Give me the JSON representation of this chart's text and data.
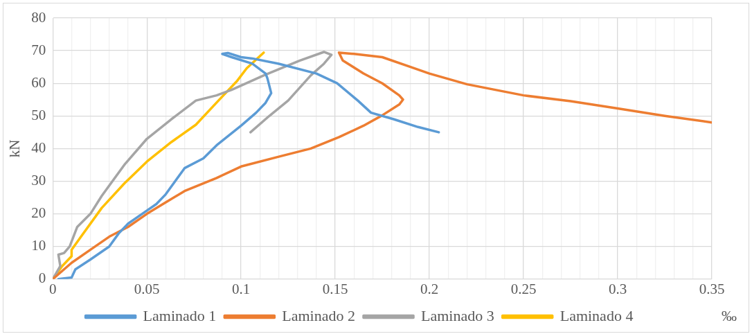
{
  "chart_data": {
    "type": "line",
    "xlabel": "‰",
    "ylabel": "kN",
    "xlim": [
      0,
      0.35
    ],
    "xticks": [
      0,
      {
        "value": 0.01,
        "label": null
      },
      {
        "value": 0.02,
        "label": null
      },
      {
        "value": 0.03,
        "label": null
      },
      {
        "value": 0.04,
        "label": null
      },
      0.05,
      {
        "value": 0.06,
        "label": null
      },
      {
        "value": 0.07,
        "label": null
      },
      {
        "value": 0.08,
        "label": null
      },
      {
        "value": 0.09,
        "label": null
      },
      0.1,
      {
        "value": 0.11,
        "label": null
      },
      {
        "value": 0.12,
        "label": null
      },
      {
        "value": 0.13,
        "label": null
      },
      {
        "value": 0.14,
        "label": null
      },
      0.15,
      {
        "value": 0.16,
        "label": null
      },
      {
        "value": 0.17,
        "label": null
      },
      {
        "value": 0.18,
        "label": null
      },
      {
        "value": 0.19,
        "label": null
      },
      0.2,
      {
        "value": 0.21,
        "label": null
      },
      {
        "value": 0.22,
        "label": null
      },
      {
        "value": 0.23,
        "label": null
      },
      {
        "value": 0.24,
        "label": null
      },
      0.25,
      {
        "value": 0.26,
        "label": null
      },
      {
        "value": 0.27,
        "label": null
      },
      {
        "value": 0.28,
        "label": null
      },
      {
        "value": 0.29,
        "label": null
      },
      0.3,
      {
        "value": 0.31,
        "label": null
      },
      {
        "value": 0.32,
        "label": null
      },
      {
        "value": 0.33,
        "label": null
      },
      {
        "value": 0.34,
        "label": null
      },
      0.35
    ],
    "ylim": [
      0,
      80
    ],
    "yticks": [
      0,
      10,
      20,
      30,
      40,
      50,
      60,
      70,
      80
    ],
    "grid": true,
    "legend": "bottom",
    "marker": "none",
    "line_style": "solid",
    "series": [
      {
        "name": "Laminado 1",
        "color": "#5b9bd5",
        "x": [
          0.003,
          0.01,
          0.012,
          0.02,
          0.03,
          0.035,
          0.04,
          0.05,
          0.055,
          0.06,
          0.065,
          0.07,
          0.08,
          0.087,
          0.1,
          0.108,
          0.113,
          0.116,
          0.114,
          0.113,
          0.106,
          0.095,
          0.09,
          0.093,
          0.1,
          0.106,
          0.12,
          0.14,
          0.151,
          0.162,
          0.169,
          0.181,
          0.194,
          0.205
        ],
        "values": [
          0,
          0.5,
          3,
          6,
          10,
          14,
          17,
          21,
          23,
          26,
          30,
          34,
          37,
          41,
          47,
          51,
          54,
          57,
          61.5,
          63,
          66,
          68,
          69,
          69.3,
          68,
          67.6,
          66,
          63,
          60,
          54.7,
          51,
          49,
          46.6,
          45
        ]
      },
      {
        "name": "Laminado 2",
        "color": "#ed7d31",
        "x": [
          0,
          0.01,
          0.02,
          0.03,
          0.04,
          0.05,
          0.06,
          0.07,
          0.087,
          0.1,
          0.12,
          0.137,
          0.152,
          0.165,
          0.175,
          0.184,
          0.186,
          0.184,
          0.175,
          0.165,
          0.154,
          0.152,
          0.16,
          0.175,
          0.19,
          0.2,
          0.22,
          0.25,
          0.275,
          0.3,
          0.325,
          0.35
        ],
        "values": [
          0,
          5,
          9,
          13,
          16,
          20,
          23.5,
          27,
          31,
          34.5,
          37.5,
          40,
          43.5,
          47,
          50.2,
          53.5,
          55,
          56.3,
          60,
          63,
          67,
          69.4,
          69,
          68,
          65,
          63,
          59.7,
          56.3,
          54.5,
          52.3,
          50,
          48
        ]
      },
      {
        "name": "Laminado 3",
        "color": "#a5a5a5",
        "x": [
          0,
          0.004,
          0.003,
          0.006,
          0.009,
          0.013,
          0.02,
          0.026,
          0.038,
          0.05,
          0.063,
          0.076,
          0.087,
          0.095,
          0.112,
          0.131,
          0.144,
          0.148,
          0.144,
          0.137,
          0.125,
          0.115,
          0.105
        ],
        "values": [
          0,
          4,
          7.5,
          8,
          10,
          16,
          20,
          25.5,
          35,
          43,
          49,
          54.7,
          56.3,
          58,
          62.4,
          66.9,
          69.6,
          68.7,
          66,
          62.4,
          54.7,
          50,
          45
        ]
      },
      {
        "name": "Laminado 4",
        "color": "#ffc000",
        "x": [
          0,
          0.005,
          0.01,
          0.01,
          0.015,
          0.026,
          0.038,
          0.05,
          0.063,
          0.076,
          0.088,
          0.098,
          0.103,
          0.112
        ],
        "values": [
          0,
          4,
          7,
          9,
          13,
          21.8,
          29.3,
          36,
          42,
          47.3,
          54.7,
          60.8,
          64.6,
          69.4
        ]
      }
    ]
  }
}
